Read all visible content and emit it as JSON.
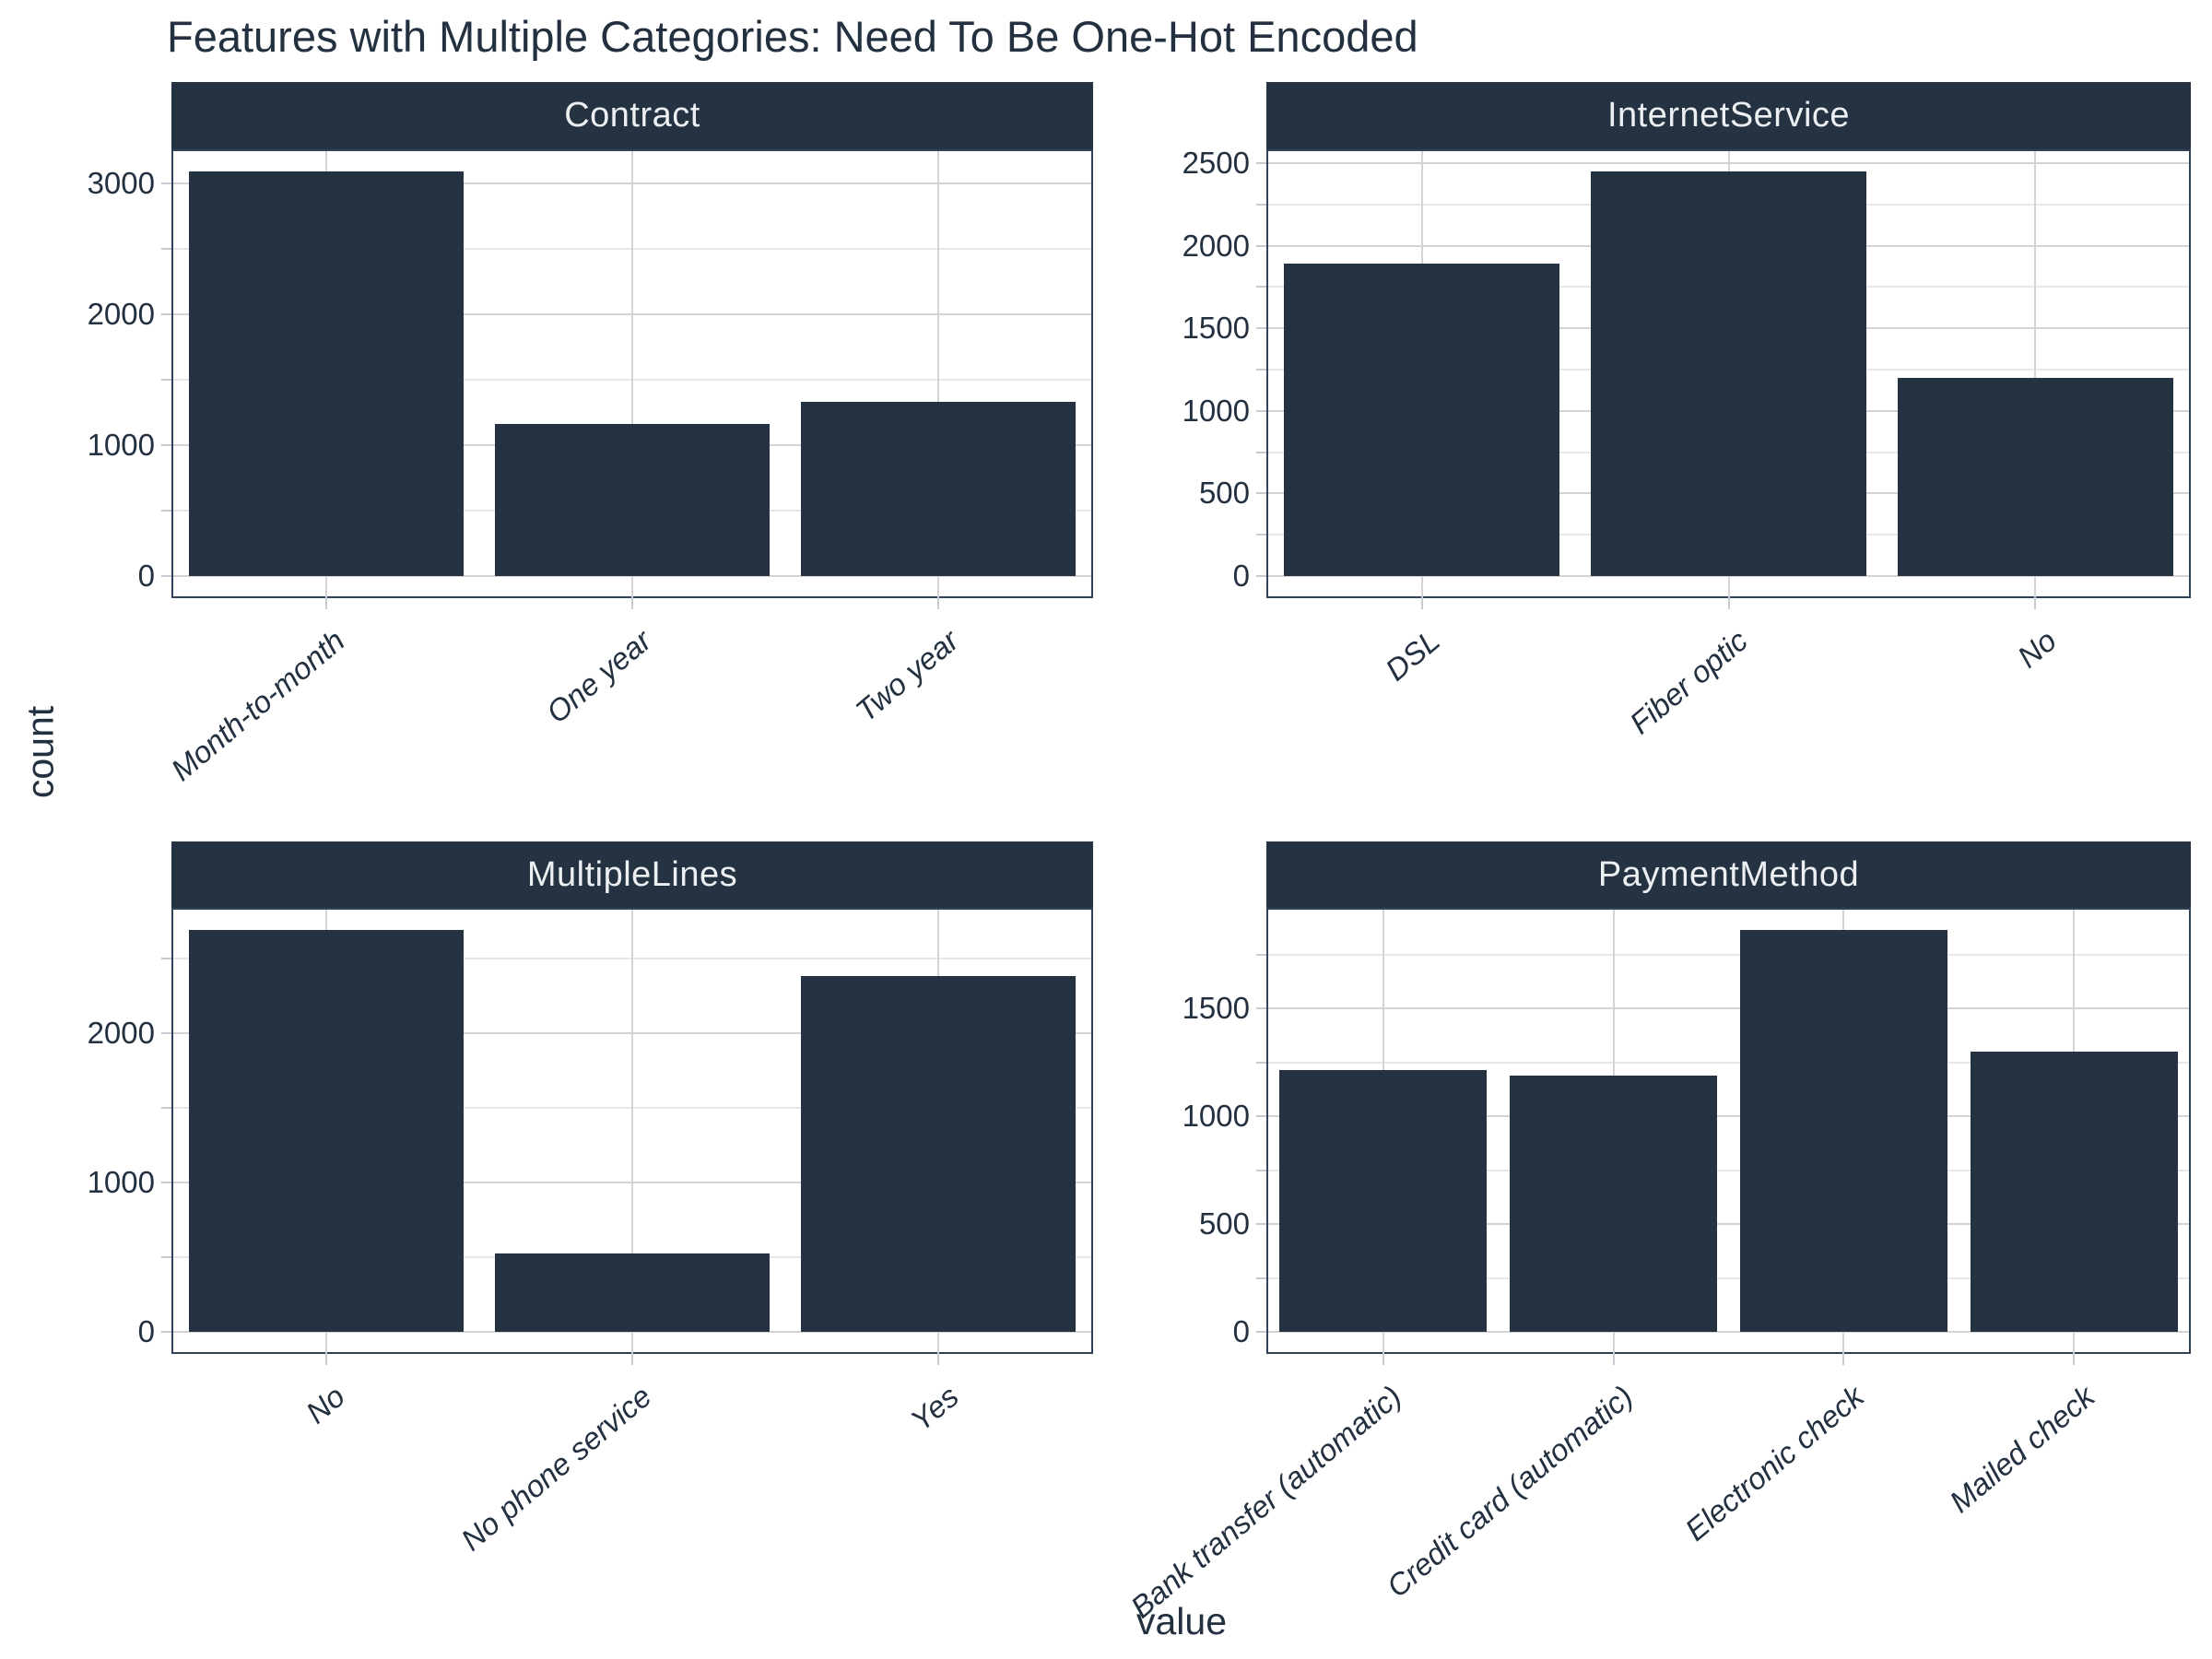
{
  "page": {
    "background": "#FFFFFF"
  },
  "chart_data": {
    "type": "bar",
    "title": "Features with Multiple Categories: Need To Be One-Hot Encoded",
    "xlabel": "value",
    "ylabel": "count",
    "legend": false,
    "grid": true,
    "colors": {
      "bar_fill": "#253241",
      "strip_fill": "#253241",
      "strip_text": "#EDF0F3",
      "ink": "#22303F",
      "grid_major": "#D3D3D3",
      "grid_minor": "#E7E7E7",
      "panel_border": "#2F4257",
      "tick_mark": "#C7CBD1",
      "background": "#FFFFFF"
    },
    "facets": [
      {
        "label": "Contract",
        "categories": [
          "Month-to-month",
          "One year",
          "Two year"
        ],
        "values": [
          3090,
          1165,
          1330
        ],
        "y_major_ticks": [
          0,
          1000,
          2000,
          3000
        ]
      },
      {
        "label": "InternetService",
        "categories": [
          "DSL",
          "Fiber optic",
          "No"
        ],
        "values": [
          1890,
          2450,
          1200
        ],
        "y_major_ticks": [
          0,
          500,
          1000,
          1500,
          2000,
          2500
        ]
      },
      {
        "label": "MultipleLines",
        "categories": [
          "No",
          "No phone service",
          "Yes"
        ],
        "values": [
          2690,
          525,
          2380
        ],
        "y_major_ticks": [
          0,
          1000,
          2000
        ]
      },
      {
        "label": "PaymentMethod",
        "categories": [
          "Bank transfer (automatic)",
          "Credit card (automatic)",
          "Electronic check",
          "Mailed check"
        ],
        "values": [
          1215,
          1190,
          1865,
          1300
        ],
        "y_major_ticks": [
          0,
          500,
          1000,
          1500
        ]
      }
    ]
  }
}
